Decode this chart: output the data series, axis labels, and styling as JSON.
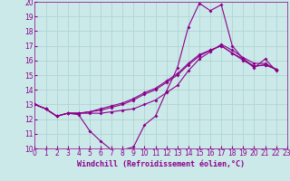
{
  "xlabel": "Windchill (Refroidissement éolien,°C)",
  "xlim": [
    0,
    23
  ],
  "ylim": [
    10,
    20
  ],
  "yticks": [
    10,
    11,
    12,
    13,
    14,
    15,
    16,
    17,
    18,
    19,
    20
  ],
  "xticks": [
    0,
    1,
    2,
    3,
    4,
    5,
    6,
    7,
    8,
    9,
    10,
    11,
    12,
    13,
    14,
    15,
    16,
    17,
    18,
    19,
    20,
    21,
    22,
    23
  ],
  "bg_color": "#cce9e9",
  "grid_color": "#b0d4d4",
  "line_color": "#8b008b",
  "lines": [
    [
      13.0,
      12.7,
      12.2,
      12.4,
      12.3,
      11.2,
      10.5,
      9.9,
      9.9,
      10.1,
      11.6,
      12.2,
      13.9,
      15.5,
      18.3,
      19.9,
      19.4,
      19.8,
      17.0,
      16.1,
      15.5,
      16.1,
      15.3
    ],
    [
      13.0,
      12.7,
      12.2,
      12.4,
      12.4,
      12.4,
      12.4,
      12.5,
      12.6,
      12.7,
      13.0,
      13.3,
      13.8,
      14.3,
      15.3,
      16.1,
      16.6,
      17.1,
      16.7,
      16.2,
      15.8,
      15.8,
      15.4
    ],
    [
      13.0,
      12.7,
      12.2,
      12.4,
      12.4,
      12.5,
      12.6,
      12.8,
      13.0,
      13.3,
      13.7,
      14.0,
      14.5,
      15.0,
      15.7,
      16.3,
      16.7,
      17.0,
      16.5,
      16.0,
      15.6,
      15.7,
      15.4
    ],
    [
      13.0,
      12.7,
      12.2,
      12.4,
      12.4,
      12.5,
      12.7,
      12.9,
      13.1,
      13.4,
      13.8,
      14.1,
      14.6,
      15.1,
      15.8,
      16.4,
      16.7,
      17.0,
      16.5,
      16.1,
      15.6,
      15.7,
      15.4
    ]
  ]
}
